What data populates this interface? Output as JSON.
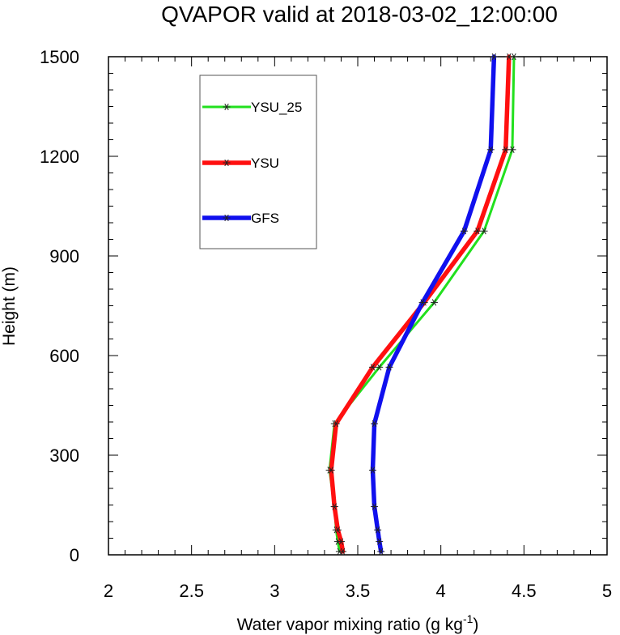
{
  "chart_data": {
    "type": "line",
    "title": "QVAPOR valid at 2018-03-02_12:00:00",
    "xlabel": "Water vapor mixing ratio (g kg",
    "xlabel_sup": "-1",
    "xlabel_end": ")",
    "ylabel": "Height (m)",
    "xlim": [
      2,
      5
    ],
    "ylim": [
      0,
      1500
    ],
    "xticks": [
      "2",
      "2.5",
      "3",
      "3.5",
      "4",
      "4.5",
      "5"
    ],
    "yticks": [
      "0",
      "300",
      "600",
      "900",
      "1200",
      "1500"
    ],
    "legend_position": "top-left",
    "series": [
      {
        "name": "YSU_25",
        "color": "#22e01e",
        "x": [
          3.39,
          3.38,
          3.37,
          3.36,
          3.33,
          3.36,
          3.63,
          3.96,
          4.26,
          4.43,
          4.44
        ],
        "y": [
          10,
          40,
          75,
          145,
          255,
          395,
          565,
          760,
          975,
          1220,
          1500
        ]
      },
      {
        "name": "YSU",
        "color": "#ff1010",
        "x": [
          3.41,
          3.4,
          3.38,
          3.36,
          3.34,
          3.37,
          3.59,
          3.9,
          4.22,
          4.39,
          4.41
        ],
        "y": [
          10,
          40,
          75,
          145,
          255,
          395,
          565,
          760,
          975,
          1220,
          1500
        ]
      },
      {
        "name": "GFS",
        "color": "#1010ee",
        "x": [
          3.64,
          3.63,
          3.62,
          3.6,
          3.59,
          3.6,
          3.69,
          3.89,
          4.14,
          4.3,
          4.32
        ],
        "y": [
          10,
          40,
          75,
          145,
          255,
          395,
          565,
          760,
          975,
          1220,
          1500
        ]
      }
    ]
  }
}
